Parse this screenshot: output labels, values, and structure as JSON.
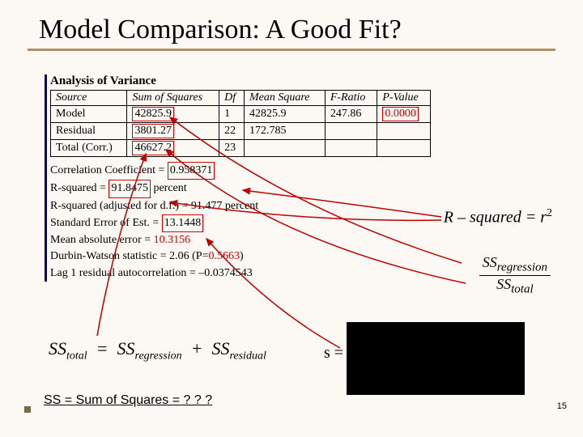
{
  "title": "Model Comparison: A Good Fit?",
  "anova": {
    "heading": "Analysis of Variance",
    "columns": [
      "Source",
      "Sum of Squares",
      "Df",
      "Mean Square",
      "F-Ratio",
      "P-Value"
    ],
    "rows": [
      [
        "Model",
        "42825.9",
        "1",
        "42825.9",
        "247.86",
        "0.0000"
      ],
      [
        "Residual",
        "3801.27",
        "22",
        "172.785",
        "",
        ""
      ],
      [
        "Total (Corr.)",
        "46627.2",
        "23",
        "",
        "",
        ""
      ]
    ],
    "boxed_cells": [
      [
        0,
        1
      ],
      [
        1,
        1
      ],
      [
        2,
        1
      ],
      [
        0,
        5
      ]
    ],
    "red_cells": [
      [
        0,
        5
      ]
    ]
  },
  "stats": {
    "lines": [
      {
        "pre": "Correlation Coefficient = ",
        "boxed": "0.958371",
        "post": ""
      },
      {
        "pre": "R-squared = ",
        "boxed": "91.8475",
        "post": " percent"
      },
      {
        "pre": "R-squared (adjusted for d.f.) = 91.477 percent",
        "boxed": "",
        "post": ""
      },
      {
        "pre": "Standard Error of Est. = ",
        "boxed": "13.1448",
        "post": ""
      },
      {
        "pre": "Mean absolute error = ",
        "boxed": "",
        "post": "",
        "redtext": "10.3156"
      },
      {
        "pre": "Durbin-Watson statistic = 2.06 (P=",
        "boxed": "",
        "post": ")",
        "redtext": "0.5663"
      },
      {
        "pre": "Lag 1 residual autocorrelation = –0.0374543",
        "boxed": "",
        "post": ""
      }
    ]
  },
  "formula_rsq": {
    "lhs": "R – squared",
    "eq": "=",
    "rhs": "r",
    "sup": "2"
  },
  "formula_frac": {
    "top": "SS",
    "top_sub": "regression",
    "bot": "SS",
    "bot_sub": "total"
  },
  "formula_ss": {
    "a": "SS",
    "a_sub": "total",
    "eq1": "=",
    "b": "SS",
    "b_sub": "regression",
    "plus": "+",
    "c": "SS",
    "c_sub": "residual"
  },
  "s_label": "s =",
  "footnote": "SS = Sum of Squares = ? ? ?",
  "slide_number": "15",
  "colors": {
    "accent_line": "#b09060",
    "redbox": "#d00000",
    "arrow": "#c00000",
    "blueborder": "#000080",
    "background": "#fcf9f4"
  }
}
